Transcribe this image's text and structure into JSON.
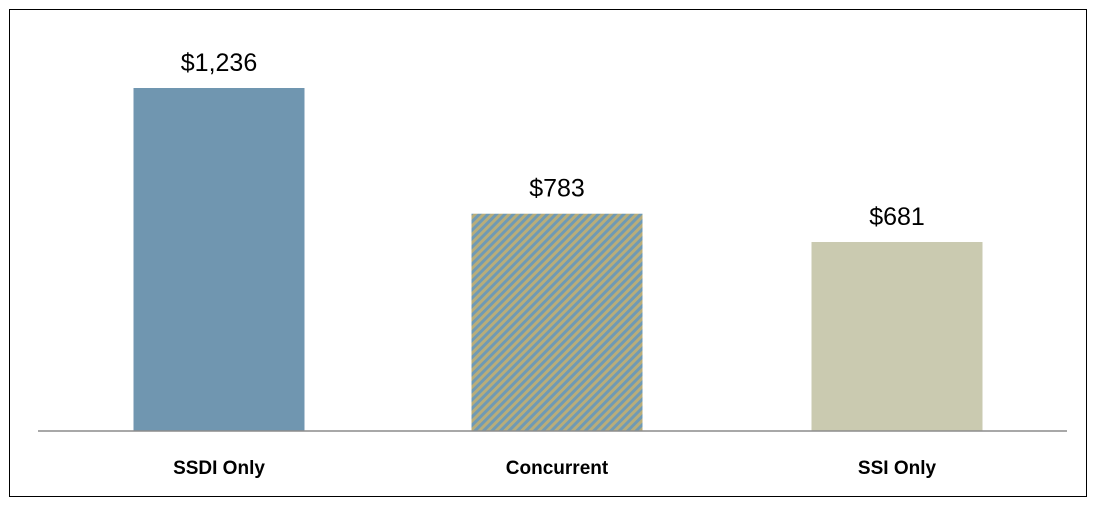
{
  "chart_data": {
    "type": "bar",
    "categories": [
      "SSDI Only",
      "Concurrent",
      "SSI Only"
    ],
    "values": [
      1236,
      783,
      681
    ],
    "data_labels": [
      "$1,236",
      "$783",
      "$681"
    ],
    "title": "",
    "xlabel": "",
    "ylabel": "",
    "ylim": [
      0,
      1250
    ],
    "grid": false,
    "legend": "none",
    "bar_styles": [
      {
        "fill": "#7096b0",
        "pattern": "solid"
      },
      {
        "fill": "#a4b088",
        "pattern": "diagonal-stripes",
        "stripe_colors": [
          "#b8ad7a",
          "#6f9ab4"
        ]
      },
      {
        "fill": "#cacab0",
        "pattern": "solid"
      }
    ]
  }
}
